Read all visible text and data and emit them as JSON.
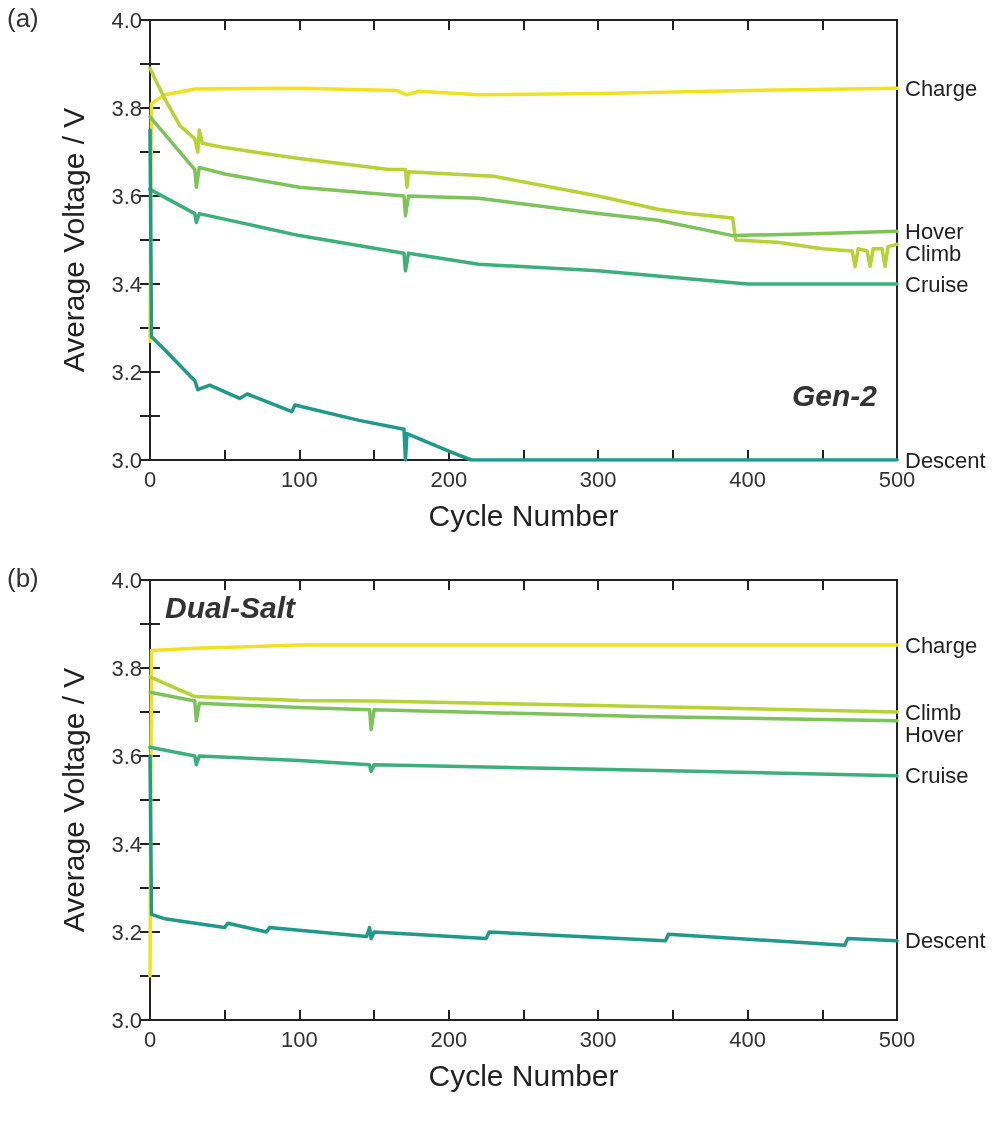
{
  "chart_data": [
    {
      "type": "line",
      "title": "(a)",
      "xlabel": "Cycle Number",
      "ylabel": "Average Voltage / V",
      "annotations": [
        "Gen-2"
      ],
      "xlim": [
        0,
        500
      ],
      "ylim": [
        3.0,
        4.0
      ],
      "xticks": [
        0,
        {
          "value": 50,
          "label": null
        },
        100,
        {
          "value": 150,
          "label": null
        },
        200,
        {
          "value": 250,
          "label": null
        },
        300,
        {
          "value": 350,
          "label": null
        },
        400,
        {
          "value": 450,
          "label": null
        },
        500
      ],
      "yticks": [
        {
          "value": 3.0,
          "label": "3.0"
        },
        {
          "value": 3.1,
          "label": null
        },
        3.2,
        {
          "value": 3.3,
          "label": null
        },
        3.4,
        {
          "value": 3.5,
          "label": null
        },
        3.6,
        {
          "value": 3.7,
          "label": null
        },
        3.8,
        {
          "value": 3.9,
          "label": null
        },
        {
          "value": 4.0,
          "label": "4.0"
        }
      ],
      "grid": false,
      "legend": false,
      "marker": "none",
      "line_style": "solid",
      "series": [
        {
          "name": "Charge",
          "color": "#f0e21e",
          "x": [
            0,
            1,
            10,
            30,
            100,
            165,
            172,
            180,
            220,
            300,
            400,
            500
          ],
          "values": [
            3.27,
            3.81,
            3.83,
            3.843,
            3.845,
            3.84,
            3.83,
            3.838,
            3.83,
            3.833,
            3.84,
            3.845
          ]
        },
        {
          "name": "Climb",
          "color": "#b5d334",
          "x": [
            0,
            10,
            20,
            30,
            32,
            33,
            35,
            50,
            100,
            160,
            171,
            172,
            173,
            230,
            300,
            340,
            360,
            390,
            392,
            420,
            450,
            470,
            472,
            474,
            480,
            482,
            484,
            490,
            492,
            494,
            500
          ],
          "values": [
            3.89,
            3.82,
            3.76,
            3.73,
            3.7,
            3.75,
            3.72,
            3.71,
            3.685,
            3.66,
            3.66,
            3.62,
            3.655,
            3.645,
            3.6,
            3.57,
            3.56,
            3.55,
            3.5,
            3.495,
            3.48,
            3.475,
            3.44,
            3.48,
            3.475,
            3.44,
            3.48,
            3.48,
            3.44,
            3.485,
            3.49
          ]
        },
        {
          "name": "Hover",
          "color": "#7cc35a",
          "x": [
            0,
            10,
            25,
            30,
            31,
            33,
            50,
            100,
            170,
            171,
            173,
            220,
            300,
            340,
            390,
            450,
            500
          ],
          "values": [
            3.78,
            3.74,
            3.68,
            3.66,
            3.62,
            3.665,
            3.65,
            3.62,
            3.6,
            3.555,
            3.6,
            3.595,
            3.56,
            3.545,
            3.51,
            3.515,
            3.52
          ]
        },
        {
          "name": "Cruise",
          "color": "#3bb07a",
          "x": [
            0,
            30,
            31,
            33,
            100,
            170,
            171,
            173,
            220,
            300,
            400,
            500
          ],
          "values": [
            3.615,
            3.56,
            3.54,
            3.56,
            3.51,
            3.47,
            3.43,
            3.47,
            3.445,
            3.43,
            3.4,
            3.4
          ]
        },
        {
          "name": "Descent",
          "color": "#1f9a8a",
          "x": [
            0,
            1,
            10,
            30,
            32,
            40,
            60,
            65,
            95,
            97,
            140,
            170,
            171,
            172,
            200,
            215,
            500
          ],
          "values": [
            3.75,
            3.28,
            3.25,
            3.18,
            3.16,
            3.17,
            3.14,
            3.15,
            3.11,
            3.125,
            3.09,
            3.07,
            3.0,
            3.06,
            3.02,
            3.0,
            3.0
          ]
        }
      ]
    },
    {
      "type": "line",
      "title": "(b)",
      "xlabel": "Cycle Number",
      "ylabel": "Average Voltage / V",
      "annotations": [
        "Dual-Salt"
      ],
      "xlim": [
        0,
        500
      ],
      "ylim": [
        3.0,
        4.0
      ],
      "xticks": [
        0,
        {
          "value": 50,
          "label": null
        },
        100,
        {
          "value": 150,
          "label": null
        },
        200,
        {
          "value": 250,
          "label": null
        },
        300,
        {
          "value": 350,
          "label": null
        },
        400,
        {
          "value": 450,
          "label": null
        },
        500
      ],
      "yticks": [
        {
          "value": 3.0,
          "label": "3.0"
        },
        {
          "value": 3.1,
          "label": null
        },
        3.2,
        {
          "value": 3.3,
          "label": null
        },
        3.4,
        {
          "value": 3.5,
          "label": null
        },
        3.6,
        {
          "value": 3.7,
          "label": null
        },
        3.8,
        {
          "value": 3.9,
          "label": null
        },
        {
          "value": 4.0,
          "label": "4.0"
        }
      ],
      "grid": false,
      "legend": false,
      "marker": "none",
      "line_style": "solid",
      "series": [
        {
          "name": "Charge",
          "color": "#f0e21e",
          "x": [
            0,
            1,
            30,
            100,
            330,
            500
          ],
          "values": [
            3.1,
            3.84,
            3.845,
            3.852,
            3.852,
            3.852
          ]
        },
        {
          "name": "Climb",
          "color": "#b5d334",
          "x": [
            0,
            30,
            100,
            150,
            300,
            500
          ],
          "values": [
            3.78,
            3.735,
            3.726,
            3.725,
            3.715,
            3.7
          ]
        },
        {
          "name": "Hover",
          "color": "#7cc35a",
          "x": [
            0,
            30,
            31,
            33,
            100,
            147,
            148,
            150,
            330,
            500
          ],
          "values": [
            3.745,
            3.725,
            3.68,
            3.72,
            3.71,
            3.705,
            3.66,
            3.705,
            3.69,
            3.68
          ]
        },
        {
          "name": "Cruise",
          "color": "#3bb07a",
          "x": [
            0,
            30,
            31,
            33,
            100,
            147,
            148,
            150,
            300,
            500
          ],
          "values": [
            3.62,
            3.6,
            3.58,
            3.6,
            3.59,
            3.58,
            3.565,
            3.58,
            3.57,
            3.555
          ]
        },
        {
          "name": "Descent",
          "color": "#1f9a8a",
          "x": [
            0,
            1,
            10,
            20,
            50,
            52,
            78,
            80,
            145,
            147,
            148,
            150,
            225,
            227,
            345,
            347,
            465,
            467,
            500
          ],
          "values": [
            3.6,
            3.24,
            3.23,
            3.225,
            3.21,
            3.22,
            3.2,
            3.21,
            3.19,
            3.21,
            3.185,
            3.2,
            3.185,
            3.2,
            3.18,
            3.195,
            3.17,
            3.185,
            3.18
          ]
        }
      ]
    }
  ]
}
